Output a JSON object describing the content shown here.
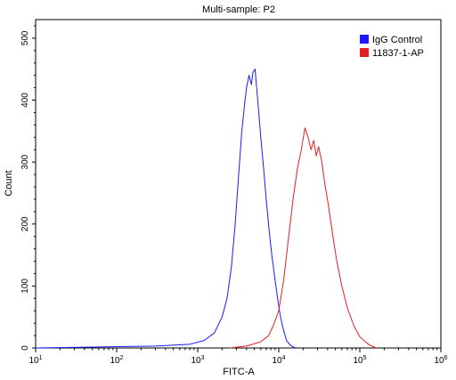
{
  "chart_data": {
    "type": "line",
    "title": "Multi-sample: P2",
    "xlabel": "FITC-A",
    "ylabel": "Count",
    "x_scale": "log",
    "xlim": [
      10,
      1000000
    ],
    "ylim": [
      0,
      530
    ],
    "x_ticks": [
      {
        "value": 10,
        "base": "10",
        "exp": "1"
      },
      {
        "value": 100,
        "base": "10",
        "exp": "2"
      },
      {
        "value": 1000,
        "base": "10",
        "exp": "3"
      },
      {
        "value": 10000,
        "base": "10",
        "exp": "4"
      },
      {
        "value": 100000,
        "base": "10",
        "exp": "5"
      },
      {
        "value": 1000000,
        "base": "10",
        "exp": "6"
      }
    ],
    "y_ticks": [
      {
        "value": 0,
        "label": "0"
      },
      {
        "value": 100,
        "label": "100"
      },
      {
        "value": 200,
        "label": "200"
      },
      {
        "value": 300,
        "label": "300"
      },
      {
        "value": 400,
        "label": "400"
      },
      {
        "value": 500,
        "label": "500"
      }
    ],
    "legend_position": "top-right",
    "series": [
      {
        "name": "IgG Control",
        "color": "#1a1aff",
        "x": [
          10,
          300,
          800,
          1200,
          1600,
          2000,
          2300,
          2600,
          2900,
          3200,
          3500,
          3800,
          4000,
          4300,
          4600,
          4800,
          5100,
          5500,
          6000,
          6500,
          7000,
          7600,
          8200,
          9000,
          9800,
          10500,
          11500,
          12500,
          14000,
          16000
        ],
        "y": [
          0,
          3,
          6,
          12,
          24,
          50,
          80,
          130,
          200,
          280,
          350,
          395,
          420,
          440,
          425,
          445,
          450,
          400,
          340,
          290,
          240,
          190,
          150,
          110,
          75,
          50,
          28,
          12,
          4,
          0
        ]
      },
      {
        "name": "11837-1-AP",
        "color": "#e32020",
        "x": [
          2500,
          4000,
          6000,
          7500,
          8500,
          10000,
          11500,
          13000,
          15000,
          17000,
          19000,
          21000,
          23000,
          25000,
          27000,
          29000,
          31000,
          34000,
          37000,
          41000,
          46000,
          52000,
          60000,
          70000,
          85000,
          100000,
          130000,
          160000
        ],
        "y": [
          0,
          3,
          10,
          20,
          35,
          60,
          110,
          170,
          240,
          290,
          320,
          355,
          340,
          320,
          335,
          310,
          325,
          300,
          265,
          230,
          185,
          140,
          100,
          65,
          35,
          18,
          5,
          0
        ]
      }
    ]
  }
}
